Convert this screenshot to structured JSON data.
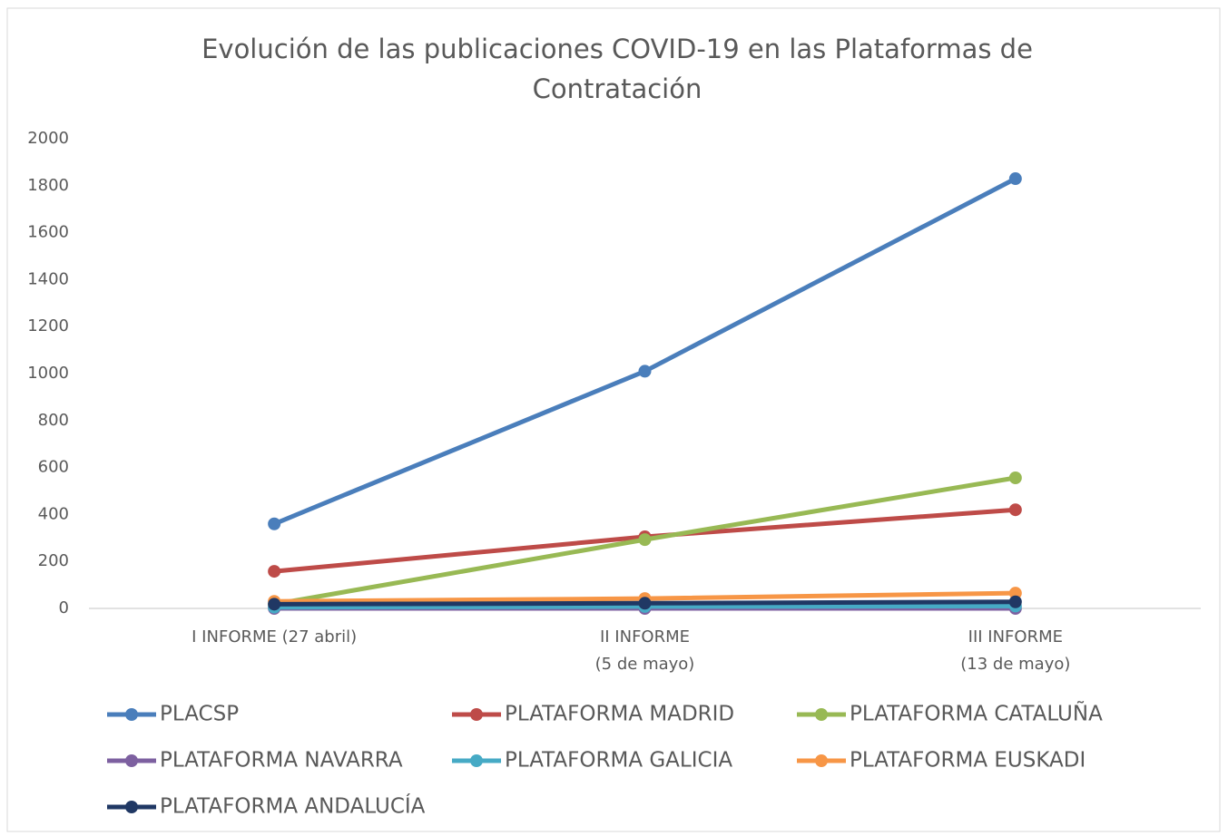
{
  "chart_data": {
    "type": "line",
    "title": "Evolución de las publicaciones COVID-19 en las Plataformas de Contratación",
    "categories": [
      "I INFORME (27 abril)",
      "II INFORME\n(5 de mayo)",
      "III INFORME\n(13 de mayo)"
    ],
    "series": [
      {
        "name": "PLACSP",
        "color": "#4a7ebb",
        "values": [
          360,
          1010,
          1830
        ]
      },
      {
        "name": "PLATAFORMA MADRID",
        "color": "#be4b48",
        "values": [
          158,
          305,
          420
        ]
      },
      {
        "name": "PLATAFORMA CATALUÑA",
        "color": "#98b954",
        "values": [
          18,
          293,
          556
        ]
      },
      {
        "name": "PLATAFORMA NAVARRA",
        "color": "#7d60a0",
        "values": [
          0,
          0,
          0
        ]
      },
      {
        "name": "PLATAFORMA GALICIA",
        "color": "#46aac5",
        "values": [
          5,
          8,
          10
        ]
      },
      {
        "name": "PLATAFORMA EUSKADI",
        "color": "#f79646",
        "values": [
          30,
          42,
          65
        ]
      },
      {
        "name": "PLATAFORMA ANDALUCÍA",
        "color": "#203864",
        "values": [
          18,
          22,
          28
        ]
      }
    ],
    "ylim": [
      0,
      2000
    ],
    "yticks": [
      0,
      200,
      400,
      600,
      800,
      1000,
      1200,
      1400,
      1600,
      1800,
      2000
    ],
    "grid": false,
    "legend": "bottom"
  }
}
